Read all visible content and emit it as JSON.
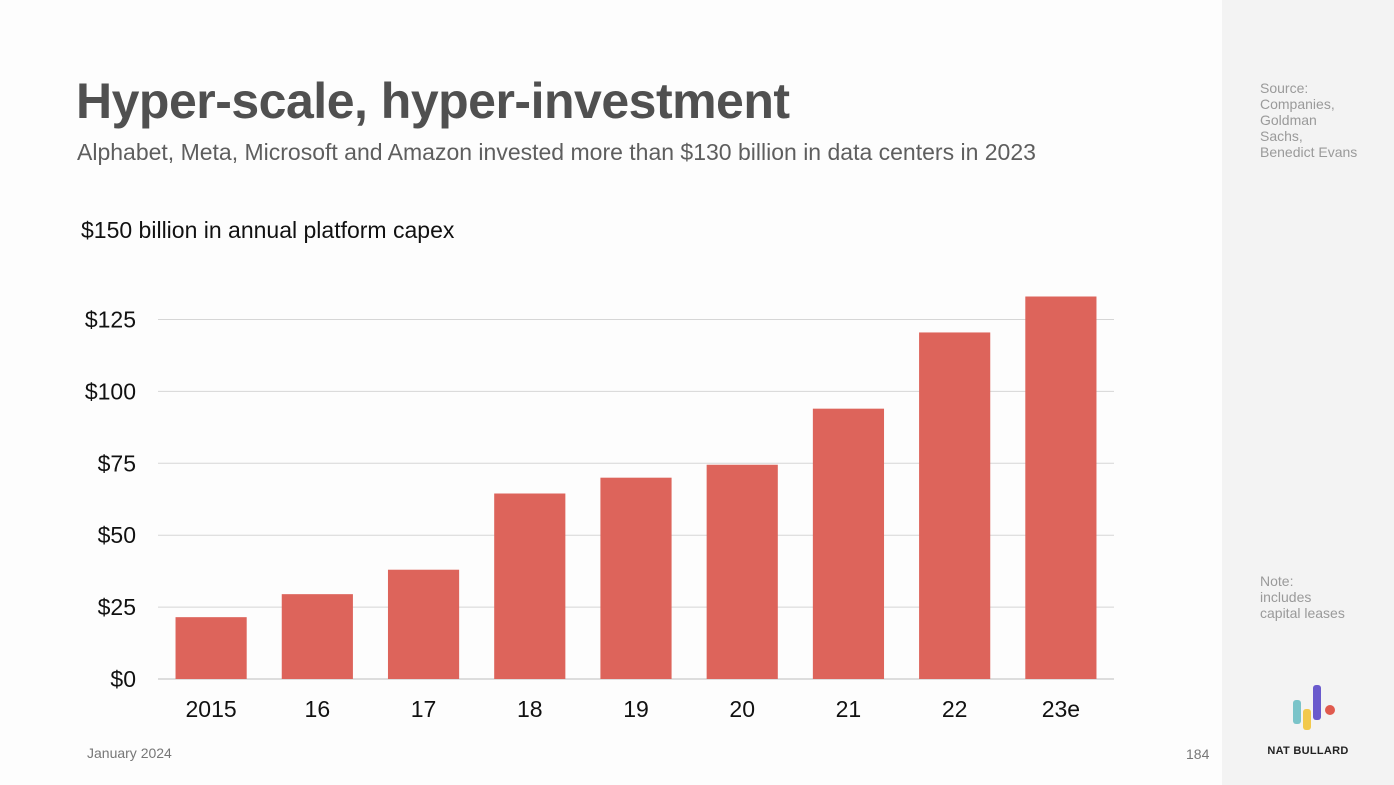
{
  "slide": {
    "title": "Hyper-scale, hyper-investment",
    "subtitle": "Alphabet, Meta, Microsoft and Amazon invested more than $130 billion in data centers in 2023",
    "date": "January 2024",
    "page_number": "184"
  },
  "sidebar": {
    "source_label": "Source:",
    "source_lines": [
      "Companies,",
      "Goldman",
      "Sachs,",
      "Benedict Evans"
    ],
    "note_label": "Note:",
    "note_lines": [
      "includes",
      "capital leases"
    ],
    "brand_name": "NAT BULLARD",
    "logo_colors": [
      "#7bc4c9",
      "#f2c94c",
      "#6a5acd",
      "#e05a4e"
    ]
  },
  "colors": {
    "bar": "#dd645b",
    "grid": "#d6d6d6",
    "axis_text": "#111111"
  },
  "chart_data": {
    "type": "bar",
    "title": "$150 billion in annual platform capex",
    "xlabel": "",
    "ylabel": "",
    "categories": [
      "2015",
      "16",
      "17",
      "18",
      "19",
      "20",
      "21",
      "22",
      "23e"
    ],
    "values": [
      21.5,
      29.5,
      38,
      64.5,
      70,
      74.5,
      94,
      120.5,
      133
    ],
    "ylim": [
      0,
      137
    ],
    "yticks": [
      0,
      25,
      50,
      75,
      100,
      125
    ],
    "ytick_labels": [
      "$0",
      "$25",
      "$50",
      "$75",
      "$100",
      "$125"
    ],
    "grid": true,
    "legend": "none"
  }
}
